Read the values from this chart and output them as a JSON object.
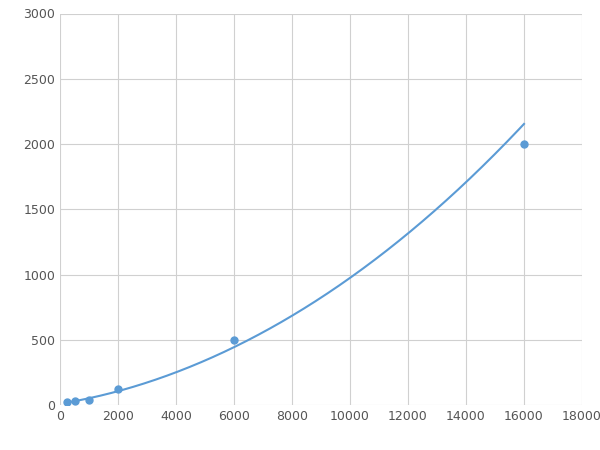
{
  "x": [
    250,
    500,
    1000,
    2000,
    6000,
    16000
  ],
  "y": [
    20,
    30,
    40,
    120,
    500,
    2000
  ],
  "line_color": "#5b9bd5",
  "marker_color": "#5b9bd5",
  "marker_size": 5,
  "line_width": 1.5,
  "xlim": [
    0,
    18000
  ],
  "ylim": [
    0,
    3000
  ],
  "xticks": [
    0,
    2000,
    4000,
    6000,
    8000,
    10000,
    12000,
    14000,
    16000,
    18000
  ],
  "yticks": [
    0,
    500,
    1000,
    1500,
    2000,
    2500,
    3000
  ],
  "grid_color": "#d0d0d0",
  "background_color": "#ffffff",
  "figure_bg": "#ffffff"
}
